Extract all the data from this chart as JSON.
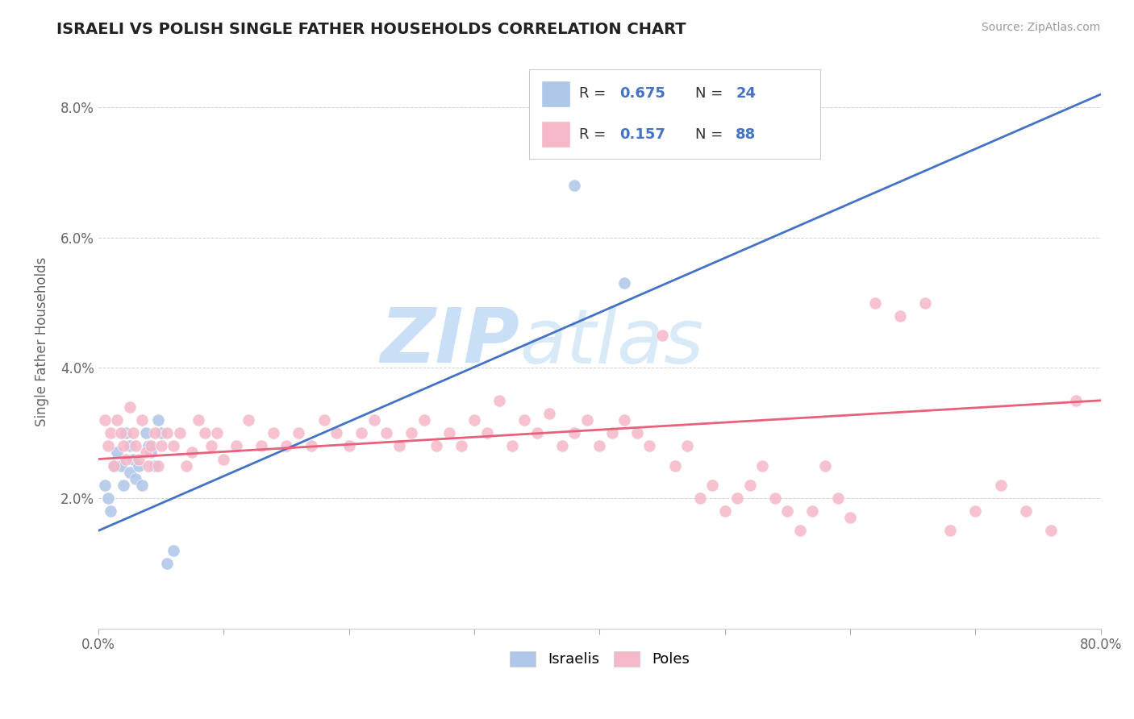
{
  "title": "ISRAELI VS POLISH SINGLE FATHER HOUSEHOLDS CORRELATION CHART",
  "source": "Source: ZipAtlas.com",
  "ylabel": "Single Father Households",
  "xmin": 0.0,
  "xmax": 0.8,
  "ymin": 0.0,
  "ymax": 0.088,
  "yticks": [
    0.0,
    0.02,
    0.04,
    0.06,
    0.08
  ],
  "ytick_labels": [
    "",
    "2.0%",
    "4.0%",
    "6.0%",
    "8.0%"
  ],
  "xticks": [
    0.0,
    0.1,
    0.2,
    0.3,
    0.4,
    0.5,
    0.6,
    0.7,
    0.8
  ],
  "xtick_labels": [
    "0.0%",
    "",
    "",
    "",
    "",
    "",
    "",
    "",
    "80.0%"
  ],
  "israelis_R": 0.675,
  "israelis_N": 24,
  "poles_R": 0.157,
  "poles_N": 88,
  "israeli_color": "#aec6e8",
  "polish_color": "#f5b8c8",
  "israeli_line_color": "#4472C4",
  "polish_line_color": "#e8607a",
  "legend_text_color": "#4472C4",
  "watermark_color": "#daeaf8",
  "background_color": "#ffffff",
  "israelis_x": [
    0.005,
    0.008,
    0.01,
    0.012,
    0.015,
    0.018,
    0.02,
    0.022,
    0.025,
    0.025,
    0.028,
    0.03,
    0.032,
    0.035,
    0.038,
    0.04,
    0.042,
    0.045,
    0.048,
    0.05,
    0.055,
    0.06,
    0.38,
    0.42
  ],
  "israelis_y": [
    0.022,
    0.02,
    0.018,
    0.025,
    0.027,
    0.025,
    0.022,
    0.03,
    0.024,
    0.028,
    0.026,
    0.023,
    0.025,
    0.022,
    0.03,
    0.028,
    0.027,
    0.025,
    0.032,
    0.03,
    0.01,
    0.012,
    0.068,
    0.053
  ],
  "poles_x": [
    0.005,
    0.008,
    0.01,
    0.012,
    0.015,
    0.018,
    0.02,
    0.022,
    0.025,
    0.028,
    0.03,
    0.032,
    0.035,
    0.038,
    0.04,
    0.042,
    0.045,
    0.048,
    0.05,
    0.055,
    0.06,
    0.065,
    0.07,
    0.075,
    0.08,
    0.085,
    0.09,
    0.095,
    0.1,
    0.11,
    0.12,
    0.13,
    0.14,
    0.15,
    0.16,
    0.17,
    0.18,
    0.19,
    0.2,
    0.21,
    0.22,
    0.23,
    0.24,
    0.25,
    0.26,
    0.27,
    0.28,
    0.29,
    0.3,
    0.31,
    0.32,
    0.33,
    0.34,
    0.35,
    0.36,
    0.37,
    0.38,
    0.39,
    0.4,
    0.41,
    0.42,
    0.43,
    0.44,
    0.45,
    0.46,
    0.47,
    0.48,
    0.49,
    0.5,
    0.51,
    0.52,
    0.53,
    0.54,
    0.55,
    0.56,
    0.57,
    0.58,
    0.59,
    0.6,
    0.62,
    0.64,
    0.66,
    0.68,
    0.7,
    0.72,
    0.74,
    0.76,
    0.78
  ],
  "poles_y": [
    0.032,
    0.028,
    0.03,
    0.025,
    0.032,
    0.03,
    0.028,
    0.026,
    0.034,
    0.03,
    0.028,
    0.026,
    0.032,
    0.027,
    0.025,
    0.028,
    0.03,
    0.025,
    0.028,
    0.03,
    0.028,
    0.03,
    0.025,
    0.027,
    0.032,
    0.03,
    0.028,
    0.03,
    0.026,
    0.028,
    0.032,
    0.028,
    0.03,
    0.028,
    0.03,
    0.028,
    0.032,
    0.03,
    0.028,
    0.03,
    0.032,
    0.03,
    0.028,
    0.03,
    0.032,
    0.028,
    0.03,
    0.028,
    0.032,
    0.03,
    0.035,
    0.028,
    0.032,
    0.03,
    0.033,
    0.028,
    0.03,
    0.032,
    0.028,
    0.03,
    0.032,
    0.03,
    0.028,
    0.045,
    0.025,
    0.028,
    0.02,
    0.022,
    0.018,
    0.02,
    0.022,
    0.025,
    0.02,
    0.018,
    0.015,
    0.018,
    0.025,
    0.02,
    0.017,
    0.05,
    0.048,
    0.05,
    0.015,
    0.018,
    0.022,
    0.018,
    0.015,
    0.035
  ],
  "israeli_trendline_x": [
    0.0,
    0.8
  ],
  "israeli_trendline_y": [
    0.015,
    0.082
  ],
  "polish_trendline_x": [
    0.0,
    0.8
  ],
  "polish_trendline_y": [
    0.026,
    0.035
  ]
}
